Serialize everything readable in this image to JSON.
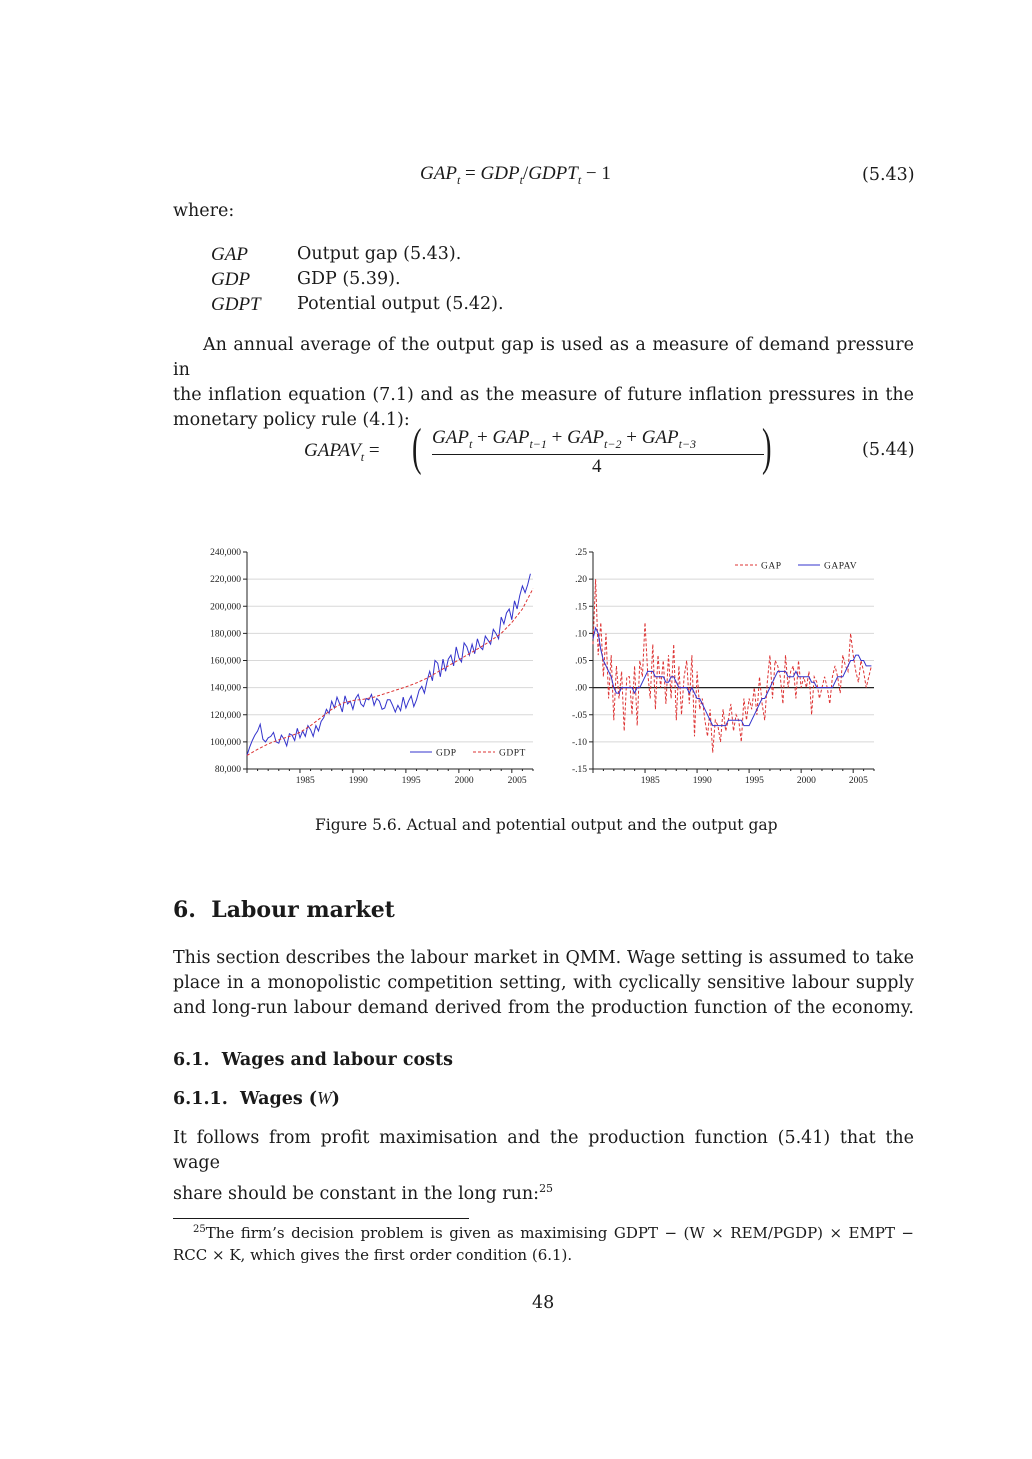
{
  "eq543": {
    "lhs": "GAP",
    "lhs_sub": "t",
    "rhs_a": "GDP",
    "rhs_a_sub": "t",
    "rhs_b": "GDPT",
    "rhs_b_sub": "t",
    "tail": "− 1",
    "number": "(5.43)"
  },
  "where_label": "where:",
  "definitions": [
    {
      "symbol": "GAP",
      "text": "Output gap (5.43)."
    },
    {
      "symbol": "GDP",
      "text": "GDP (5.39)."
    },
    {
      "symbol": "GDPT",
      "text": "Potential output (5.42)."
    }
  ],
  "para1": {
    "lines": [
      "An annual average of the output gap is used as a measure of demand pressure in",
      "the inflation equation (7.1) and as the measure of future inflation pressures in the",
      "monetary policy rule (4.1):"
    ]
  },
  "eq544": {
    "lhs": "GAPAV",
    "lhs_sub": "t",
    "numerator": [
      {
        "sym": "GAP",
        "sub": "t"
      },
      {
        "sym": "GAP",
        "sub": "t−1"
      },
      {
        "sym": "GAP",
        "sub": "t−2"
      },
      {
        "sym": "GAP",
        "sub": "t−3"
      }
    ],
    "denominator": "4",
    "number": "(5.44)"
  },
  "chart_data": [
    {
      "type": "line",
      "title": "",
      "xlabel": "",
      "ylabel": "",
      "xlim": [
        1980,
        2007
      ],
      "ylim": [
        80000,
        240000
      ],
      "x_ticks": [
        "1985",
        "1990",
        "1995",
        "2000",
        "2005"
      ],
      "y_ticks": [
        "240,000",
        "220,000",
        "200,000",
        "180,000",
        "160,000",
        "140,000",
        "120,000",
        "100,000",
        "80,000"
      ],
      "grid": true,
      "legend_position": "bottom-right",
      "series": [
        {
          "name": "GDP",
          "color": "#3333cc",
          "style": "solid",
          "x": [
            1980.0,
            1980.25,
            1980.5,
            1980.75,
            1981.0,
            1981.25,
            1981.5,
            1981.75,
            1982.0,
            1982.25,
            1982.5,
            1982.75,
            1983.0,
            1983.25,
            1983.5,
            1983.75,
            1984.0,
            1984.25,
            1984.5,
            1984.75,
            1985.0,
            1985.25,
            1985.5,
            1985.75,
            1986.0,
            1986.25,
            1986.5,
            1986.75,
            1987.0,
            1987.25,
            1987.5,
            1987.75,
            1988.0,
            1988.25,
            1988.5,
            1988.75,
            1989.0,
            1989.25,
            1989.5,
            1989.75,
            1990.0,
            1990.25,
            1990.5,
            1990.75,
            1991.0,
            1991.25,
            1991.5,
            1991.75,
            1992.0,
            1992.25,
            1992.5,
            1992.75,
            1993.0,
            1993.25,
            1993.5,
            1993.75,
            1994.0,
            1994.25,
            1994.5,
            1994.75,
            1995.0,
            1995.25,
            1995.5,
            1995.75,
            1996.0,
            1996.25,
            1996.5,
            1996.75,
            1997.0,
            1997.25,
            1997.5,
            1997.75,
            1998.0,
            1998.25,
            1998.5,
            1998.75,
            1999.0,
            1999.25,
            1999.5,
            1999.75,
            2000.0,
            2000.25,
            2000.5,
            2000.75,
            2001.0,
            2001.25,
            2001.5,
            2001.75,
            2002.0,
            2002.25,
            2002.5,
            2002.75,
            2003.0,
            2003.25,
            2003.5,
            2003.75,
            2004.0,
            2004.25,
            2004.5,
            2004.75,
            2005.0,
            2005.25,
            2005.5,
            2005.75,
            2006.0,
            2006.25,
            2006.5,
            2006.75
          ],
          "values": [
            90000,
            96000,
            101000,
            105000,
            108000,
            113000,
            102000,
            100000,
            103000,
            104000,
            107000,
            100000,
            99000,
            105000,
            102000,
            97000,
            106000,
            105000,
            101000,
            110000,
            103000,
            108000,
            104000,
            112000,
            109000,
            104000,
            112000,
            108000,
            115000,
            118000,
            124000,
            121000,
            130000,
            125000,
            133000,
            128000,
            122000,
            134000,
            128000,
            130000,
            124000,
            132000,
            135000,
            128000,
            126000,
            132000,
            131000,
            135000,
            127000,
            132000,
            130000,
            124000,
            125000,
            131000,
            131000,
            127000,
            122000,
            127000,
            123000,
            133000,
            125000,
            130000,
            134000,
            126000,
            131000,
            138000,
            141000,
            136000,
            145000,
            152000,
            145000,
            160000,
            158000,
            148000,
            161000,
            152000,
            161000,
            164000,
            156000,
            170000,
            162000,
            159000,
            173000,
            170000,
            164000,
            172000,
            165000,
            176000,
            170000,
            168000,
            178000,
            175000,
            172000,
            183000,
            180000,
            176000,
            192000,
            187000,
            195000,
            198000,
            190000,
            204000,
            198000,
            208000,
            215000,
            210000,
            216000,
            224000
          ],
          "note": ""
        },
        {
          "name": "GDPT",
          "color": "#dd3333",
          "style": "dashed",
          "x": [
            1980,
            1981,
            1982,
            1983,
            1984,
            1985,
            1986,
            1987,
            1988,
            1989,
            1990,
            1991,
            1992,
            1993,
            1994,
            1995,
            1996,
            1997,
            1998,
            1999,
            2000,
            2001,
            2002,
            2003,
            2004,
            2005,
            2006,
            2007
          ],
          "values": [
            90000,
            94500,
            98500,
            101500,
            104000,
            107000,
            112000,
            118000,
            124000,
            128500,
            130500,
            131500,
            133000,
            135500,
            138000,
            140500,
            143500,
            147000,
            151500,
            156000,
            160500,
            165000,
            169500,
            174500,
            180000,
            188000,
            198000,
            213000
          ]
        }
      ]
    },
    {
      "type": "line",
      "title": "",
      "xlabel": "",
      "ylabel": "",
      "xlim": [
        1980,
        2007
      ],
      "ylim": [
        -0.15,
        0.25
      ],
      "x_ticks": [
        "1985",
        "1990",
        "1995",
        "2000",
        "2005"
      ],
      "y_ticks": [
        ".25",
        ".20",
        ".15",
        ".10",
        ".05",
        ".00",
        "-.05",
        "-.10",
        "-.15"
      ],
      "grid": true,
      "legend_position": "top-right",
      "zero_line": true,
      "series": [
        {
          "name": "GAP",
          "color": "#dd3333",
          "style": "dashed",
          "x": [
            1980.0,
            1980.25,
            1980.5,
            1980.75,
            1981.0,
            1981.25,
            1981.5,
            1981.75,
            1982.0,
            1982.25,
            1982.5,
            1982.75,
            1983.0,
            1983.25,
            1983.5,
            1983.75,
            1984.0,
            1984.25,
            1984.5,
            1984.75,
            1985.0,
            1985.25,
            1985.5,
            1985.75,
            1986.0,
            1986.25,
            1986.5,
            1986.75,
            1987.0,
            1987.25,
            1987.5,
            1987.75,
            1988.0,
            1988.25,
            1988.5,
            1988.75,
            1989.0,
            1989.25,
            1989.5,
            1989.75,
            1990.0,
            1990.25,
            1990.5,
            1990.75,
            1991.0,
            1991.25,
            1991.5,
            1991.75,
            1992.0,
            1992.25,
            1992.5,
            1992.75,
            1993.0,
            1993.25,
            1993.5,
            1993.75,
            1994.0,
            1994.25,
            1994.5,
            1994.75,
            1995.0,
            1995.25,
            1995.5,
            1995.75,
            1996.0,
            1996.25,
            1996.5,
            1996.75,
            1997.0,
            1997.25,
            1997.5,
            1997.75,
            1998.0,
            1998.25,
            1998.5,
            1998.75,
            1999.0,
            1999.25,
            1999.5,
            1999.75,
            2000.0,
            2000.25,
            2000.5,
            2000.75,
            2001.0,
            2001.25,
            2001.5,
            2001.75,
            2002.0,
            2002.25,
            2002.5,
            2002.75,
            2003.0,
            2003.25,
            2003.5,
            2003.75,
            2004.0,
            2004.25,
            2004.5,
            2004.75,
            2005.0,
            2005.25,
            2005.5,
            2005.75,
            2006.0,
            2006.25,
            2006.5,
            2006.75
          ],
          "values": [
            0.08,
            0.2,
            0.06,
            0.12,
            0.02,
            0.1,
            -0.02,
            0.06,
            -0.06,
            0.04,
            -0.02,
            0.03,
            -0.08,
            0.02,
            0.02,
            -0.05,
            0.04,
            -0.07,
            0.05,
            0.02,
            0.12,
            0.03,
            -0.02,
            0.08,
            -0.04,
            0.06,
            0.0,
            0.05,
            -0.03,
            0.06,
            -0.02,
            0.08,
            -0.06,
            0.04,
            -0.05,
            0.02,
            0.05,
            -0.03,
            0.06,
            -0.09,
            0.03,
            -0.04,
            -0.02,
            -0.06,
            -0.09,
            -0.04,
            -0.12,
            -0.06,
            -0.07,
            -0.1,
            -0.04,
            -0.08,
            -0.06,
            -0.03,
            -0.08,
            -0.05,
            -0.06,
            -0.1,
            -0.02,
            -0.06,
            -0.02,
            -0.04,
            0.0,
            -0.05,
            0.02,
            -0.03,
            -0.06,
            0.01,
            0.06,
            -0.02,
            0.05,
            0.04,
            0.02,
            -0.03,
            0.06,
            0.0,
            0.03,
            0.04,
            -0.02,
            0.05,
            0.0,
            0.02,
            0.0,
            0.03,
            -0.05,
            0.02,
            0.01,
            -0.02,
            0.0,
            0.02,
            0.0,
            -0.03,
            0.02,
            0.04,
            0.02,
            -0.01,
            0.06,
            0.04,
            0.03,
            0.1,
            0.06,
            0.03,
            0.01,
            0.05,
            0.03,
            0.0,
            0.02,
            0.04
          ]
        },
        {
          "name": "GAPAV",
          "color": "#3333cc",
          "style": "solid",
          "x": [
            1980.0,
            1980.25,
            1980.5,
            1980.75,
            1981.0,
            1981.25,
            1981.5,
            1981.75,
            1982.0,
            1982.25,
            1982.5,
            1982.75,
            1983.0,
            1983.25,
            1983.5,
            1983.75,
            1984.0,
            1984.25,
            1984.5,
            1984.75,
            1985.0,
            1985.25,
            1985.5,
            1985.75,
            1986.0,
            1986.25,
            1986.5,
            1986.75,
            1987.0,
            1987.25,
            1987.5,
            1987.75,
            1988.0,
            1988.25,
            1988.5,
            1988.75,
            1989.0,
            1989.25,
            1989.5,
            1989.75,
            1990.0,
            1990.25,
            1990.5,
            1990.75,
            1991.0,
            1991.25,
            1991.5,
            1991.75,
            1992.0,
            1992.25,
            1992.5,
            1992.75,
            1993.0,
            1993.25,
            1993.5,
            1993.75,
            1994.0,
            1994.25,
            1994.5,
            1994.75,
            1995.0,
            1995.25,
            1995.5,
            1995.75,
            1996.0,
            1996.25,
            1996.5,
            1996.75,
            1997.0,
            1997.25,
            1997.5,
            1997.75,
            1998.0,
            1998.25,
            1998.5,
            1998.75,
            1999.0,
            1999.25,
            1999.5,
            1999.75,
            2000.0,
            2000.25,
            2000.5,
            2000.75,
            2001.0,
            2001.25,
            2001.5,
            2001.75,
            2002.0,
            2002.25,
            2002.5,
            2002.75,
            2003.0,
            2003.25,
            2003.5,
            2003.75,
            2004.0,
            2004.25,
            2004.5,
            2004.75,
            2005.0,
            2005.25,
            2005.5,
            2005.75,
            2006.0,
            2006.25,
            2006.5,
            2006.75
          ],
          "values": [
            0.09,
            0.11,
            0.1,
            0.07,
            0.05,
            0.04,
            0.03,
            0.02,
            0.0,
            -0.01,
            -0.01,
            0.0,
            0.0,
            0.0,
            0.0,
            0.0,
            -0.01,
            0.0,
            0.0,
            0.01,
            0.02,
            0.03,
            0.03,
            0.03,
            0.02,
            0.02,
            0.02,
            0.02,
            0.01,
            0.01,
            0.02,
            0.02,
            0.01,
            0.0,
            0.0,
            0.0,
            0.0,
            -0.01,
            0.0,
            -0.01,
            -0.02,
            -0.02,
            -0.03,
            -0.04,
            -0.05,
            -0.06,
            -0.07,
            -0.07,
            -0.07,
            -0.07,
            -0.07,
            -0.07,
            -0.06,
            -0.06,
            -0.06,
            -0.06,
            -0.06,
            -0.06,
            -0.07,
            -0.07,
            -0.07,
            -0.06,
            -0.05,
            -0.04,
            -0.03,
            -0.02,
            -0.02,
            -0.01,
            0.0,
            0.01,
            0.02,
            0.03,
            0.03,
            0.03,
            0.03,
            0.02,
            0.02,
            0.02,
            0.03,
            0.02,
            0.02,
            0.02,
            0.02,
            0.02,
            0.01,
            0.01,
            0.0,
            0.0,
            0.0,
            0.0,
            0.0,
            0.0,
            0.0,
            0.01,
            0.02,
            0.02,
            0.02,
            0.03,
            0.04,
            0.05,
            0.05,
            0.06,
            0.06,
            0.05,
            0.05,
            0.04,
            0.04,
            0.04
          ]
        }
      ]
    }
  ],
  "figure_caption": "Figure 5.6. Actual and potential output and the output gap",
  "section": {
    "number": "6.",
    "title": "Labour market"
  },
  "para2": {
    "lines": [
      "This section describes the labour market in QMM. Wage setting is assumed to take",
      "place in a monopolistic competition setting, with cyclically sensitive labour supply",
      "and long-run labour demand derived from the production function of the economy."
    ]
  },
  "subsection": {
    "number": "6.1.",
    "title": "Wages and labour costs"
  },
  "subsubsection": {
    "number": "6.1.1.",
    "title": "Wages",
    "symbol": "W"
  },
  "para3": {
    "lines": [
      "It follows from profit maximisation and the production function (5.41) that the wage",
      "share should be constant in the long run:"
    ],
    "footnote_ref": "25"
  },
  "footnote": {
    "mark": "25",
    "line1": "The firm’s decision problem is given as maximising GDPT − (W × REM/PGDP) × EMPT −",
    "line2": "RCC × K, which gives the first order condition (6.1)."
  },
  "page_number": "48"
}
